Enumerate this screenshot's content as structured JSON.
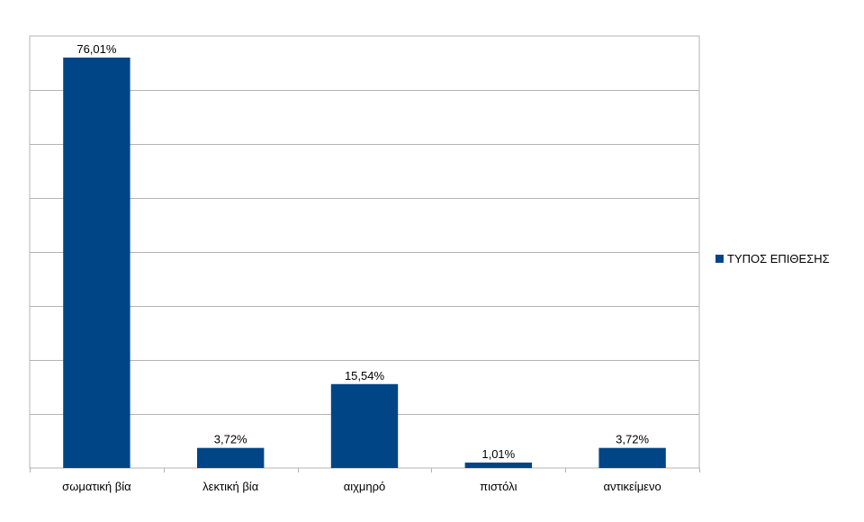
{
  "chart_data": {
    "type": "bar",
    "categories": [
      "σωματική βία",
      "λεκτική βία",
      "αιχμηρό",
      "πιστόλι",
      "αντικείμενο"
    ],
    "series": [
      {
        "name": "ΤΥΠΟΣ ΕΠΙΘΕΣΗΣ",
        "values": [
          76.01,
          3.72,
          15.54,
          1.01,
          3.72
        ],
        "data_labels": [
          "76,01%",
          "3,72%",
          "15,54%",
          "1,01%",
          "3,72%"
        ],
        "color": "#004586"
      }
    ],
    "ylim": [
      0,
      80
    ],
    "grid": true,
    "legend_position": "right"
  }
}
